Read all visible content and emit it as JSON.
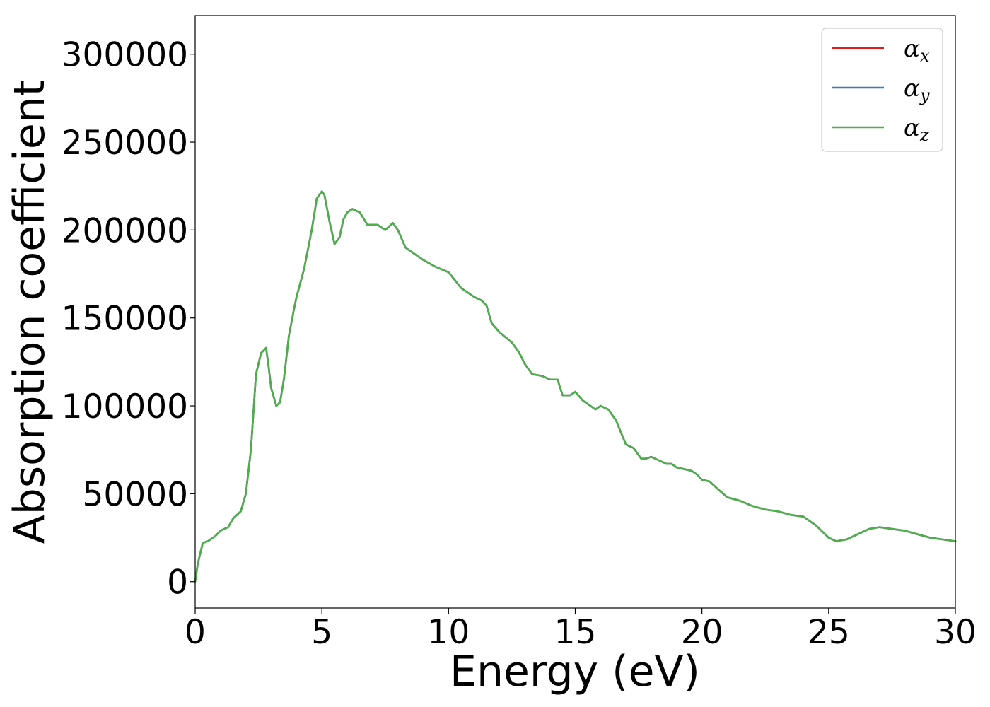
{
  "chart_data": {
    "type": "line",
    "title": "",
    "xlabel": "Energy (eV)",
    "ylabel": "Absorption coefficient",
    "xlim": [
      0,
      30
    ],
    "ylim": [
      -15000,
      322000
    ],
    "x_ticks": [
      0,
      5,
      10,
      15,
      20,
      25,
      30
    ],
    "y_ticks": [
      0,
      50000,
      100000,
      150000,
      200000,
      250000,
      300000
    ],
    "grid": false,
    "legend_position": "top-right",
    "x": [
      0,
      0.1,
      0.3,
      0.5,
      0.8,
      1.0,
      1.3,
      1.5,
      1.8,
      2.0,
      2.2,
      2.4,
      2.6,
      2.8,
      2.9,
      3.0,
      3.2,
      3.35,
      3.5,
      3.7,
      3.9,
      4.0,
      4.3,
      4.6,
      4.8,
      5.0,
      5.1,
      5.3,
      5.5,
      5.7,
      5.85,
      6.0,
      6.2,
      6.5,
      6.8,
      7.0,
      7.2,
      7.5,
      7.8,
      8.0,
      8.3,
      8.5,
      9.0,
      9.5,
      10.0,
      10.5,
      11.0,
      11.3,
      11.5,
      11.7,
      12.0,
      12.5,
      12.8,
      13.0,
      13.3,
      13.7,
      14.0,
      14.3,
      14.5,
      14.8,
      15.0,
      15.3,
      15.6,
      15.8,
      16.0,
      16.3,
      16.6,
      16.8,
      17.0,
      17.3,
      17.6,
      17.8,
      18.0,
      18.3,
      18.6,
      18.8,
      19.0,
      19.3,
      19.6,
      19.8,
      20.0,
      20.3,
      20.6,
      21.0,
      21.5,
      22.0,
      22.5,
      23.0,
      23.5,
      24.0,
      24.5,
      25.0,
      25.3,
      25.7,
      26.0,
      26.3,
      26.6,
      27.0,
      27.5,
      28.0,
      28.5,
      29.0,
      29.5,
      30.0
    ],
    "series": [
      {
        "name": "α_x",
        "color": "#e41a1c",
        "values": [
          0,
          10000,
          22000,
          23000,
          26000,
          29000,
          31000,
          36000,
          40000,
          50000,
          75000,
          118000,
          130000,
          133000,
          122000,
          110000,
          100000,
          102000,
          115000,
          140000,
          155000,
          162000,
          178000,
          200000,
          218000,
          222000,
          220000,
          205000,
          192000,
          196000,
          206000,
          210000,
          212000,
          210000,
          203000,
          203000,
          203000,
          200000,
          204000,
          200000,
          190000,
          188000,
          183000,
          179000,
          176000,
          167000,
          162000,
          160000,
          157000,
          147000,
          142000,
          136000,
          130000,
          124000,
          118000,
          117000,
          115000,
          115000,
          106000,
          106000,
          108000,
          103000,
          100000,
          98000,
          100000,
          98000,
          92000,
          85000,
          78000,
          76000,
          70000,
          70000,
          71000,
          69000,
          67000,
          67000,
          65000,
          64000,
          63000,
          61000,
          58000,
          57000,
          53000,
          48000,
          46000,
          43000,
          41000,
          40000,
          38000,
          37000,
          32000,
          25000,
          23000,
          24000,
          26000,
          28000,
          30000,
          31000,
          30000,
          29000,
          27000,
          25000,
          24000,
          23000
        ]
      },
      {
        "name": "α_y",
        "color": "#377eb8",
        "values": [
          0,
          10000,
          22000,
          23000,
          26000,
          29000,
          31000,
          36000,
          40000,
          50000,
          75000,
          118000,
          130000,
          133000,
          122000,
          110000,
          100000,
          102000,
          115000,
          140000,
          155000,
          162000,
          178000,
          200000,
          218000,
          222000,
          220000,
          205000,
          192000,
          196000,
          206000,
          210000,
          212000,
          210000,
          203000,
          203000,
          203000,
          200000,
          204000,
          200000,
          190000,
          188000,
          183000,
          179000,
          176000,
          167000,
          162000,
          160000,
          157000,
          147000,
          142000,
          136000,
          130000,
          124000,
          118000,
          117000,
          115000,
          115000,
          106000,
          106000,
          108000,
          103000,
          100000,
          98000,
          100000,
          98000,
          92000,
          85000,
          78000,
          76000,
          70000,
          70000,
          71000,
          69000,
          67000,
          67000,
          65000,
          64000,
          63000,
          61000,
          58000,
          57000,
          53000,
          48000,
          46000,
          43000,
          41000,
          40000,
          38000,
          37000,
          32000,
          25000,
          23000,
          24000,
          26000,
          28000,
          30000,
          31000,
          30000,
          29000,
          27000,
          25000,
          24000,
          23000
        ]
      },
      {
        "name": "α_z",
        "color": "#4daf4a",
        "values": [
          0,
          10000,
          22000,
          23000,
          26000,
          29000,
          31000,
          36000,
          40000,
          50000,
          75000,
          118000,
          130000,
          133000,
          122000,
          110000,
          100000,
          102000,
          115000,
          140000,
          155000,
          162000,
          178000,
          200000,
          218000,
          222000,
          220000,
          205000,
          192000,
          196000,
          206000,
          210000,
          212000,
          210000,
          203000,
          203000,
          203000,
          200000,
          204000,
          200000,
          190000,
          188000,
          183000,
          179000,
          176000,
          167000,
          162000,
          160000,
          157000,
          147000,
          142000,
          136000,
          130000,
          124000,
          118000,
          117000,
          115000,
          115000,
          106000,
          106000,
          108000,
          103000,
          100000,
          98000,
          100000,
          98000,
          92000,
          85000,
          78000,
          76000,
          70000,
          70000,
          71000,
          69000,
          67000,
          67000,
          65000,
          64000,
          63000,
          61000,
          58000,
          57000,
          53000,
          48000,
          46000,
          43000,
          41000,
          40000,
          38000,
          37000,
          32000,
          25000,
          23000,
          24000,
          26000,
          28000,
          30000,
          31000,
          30000,
          29000,
          27000,
          25000,
          24000,
          23000
        ]
      }
    ],
    "legend": [
      {
        "symbol": "α",
        "subscript": "x",
        "color": "#e41a1c"
      },
      {
        "symbol": "α",
        "subscript": "y",
        "color": "#377eb8"
      },
      {
        "symbol": "α",
        "subscript": "z",
        "color": "#4daf4a"
      }
    ]
  }
}
